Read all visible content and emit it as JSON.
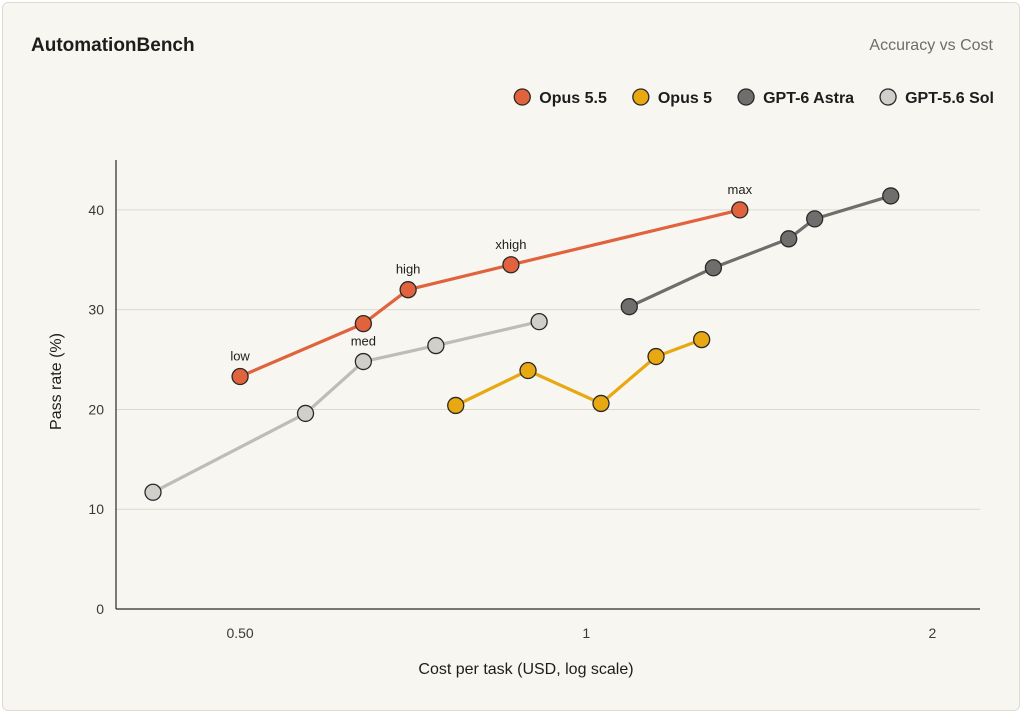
{
  "header": {
    "title": "AutomationBench",
    "subtitle": "Accuracy vs Cost"
  },
  "chart_data": {
    "type": "line",
    "title": "AutomationBench",
    "subtitle": "Accuracy vs Cost",
    "xlabel": "Cost per task (USD, log scale)",
    "ylabel": "Pass rate (%)",
    "xscale": "log",
    "xlim": [
      0.39,
      2.2
    ],
    "ylim": [
      0,
      45
    ],
    "xticks": [
      {
        "value": 0.5,
        "label": "0.50"
      },
      {
        "value": 1,
        "label": "1"
      },
      {
        "value": 2,
        "label": "2"
      }
    ],
    "yticks": [
      {
        "value": 0,
        "label": "0"
      },
      {
        "value": 10,
        "label": "10"
      },
      {
        "value": 20,
        "label": "20"
      },
      {
        "value": 30,
        "label": "30"
      },
      {
        "value": 40,
        "label": "40"
      }
    ],
    "grid": "horizontal",
    "legend_position": "top-right",
    "series": [
      {
        "name": "Opus 5.5",
        "color": "#e0633e",
        "line_color": "#e0633e",
        "points": [
          {
            "x": 0.5,
            "y": 23.3,
            "label": "low"
          },
          {
            "x": 0.64,
            "y": 28.6,
            "label": ""
          },
          {
            "x": 0.7,
            "y": 32.0,
            "label": "high"
          },
          {
            "x": 0.86,
            "y": 34.5,
            "label": "xhigh"
          },
          {
            "x": 1.36,
            "y": 40.0,
            "label": "max"
          }
        ]
      },
      {
        "name": "Opus 5",
        "color": "#e8a812",
        "line_color": "#e8a812",
        "points": [
          {
            "x": 0.77,
            "y": 20.4,
            "label": ""
          },
          {
            "x": 0.89,
            "y": 23.9,
            "label": ""
          },
          {
            "x": 1.03,
            "y": 20.6,
            "label": ""
          },
          {
            "x": 1.15,
            "y": 25.3,
            "label": ""
          },
          {
            "x": 1.26,
            "y": 27.0,
            "label": ""
          }
        ]
      },
      {
        "name": "GPT-6 Astra",
        "color": "#6e6e6c",
        "line_color": "#6e6e6c",
        "points": [
          {
            "x": 1.09,
            "y": 30.3,
            "label": ""
          },
          {
            "x": 1.29,
            "y": 34.2,
            "label": ""
          },
          {
            "x": 1.5,
            "y": 37.1,
            "label": ""
          },
          {
            "x": 1.58,
            "y": 39.1,
            "label": ""
          },
          {
            "x": 1.84,
            "y": 41.4,
            "label": ""
          }
        ]
      },
      {
        "name": "GPT-5.6 Sol",
        "color": "#d0cfcb",
        "line_color": "#bdbcb7",
        "points": [
          {
            "x": 0.42,
            "y": 11.7,
            "label": ""
          },
          {
            "x": 0.57,
            "y": 19.6,
            "label": ""
          },
          {
            "x": 0.64,
            "y": 24.8,
            "label": "med"
          },
          {
            "x": 0.74,
            "y": 26.4,
            "label": ""
          },
          {
            "x": 0.91,
            "y": 28.8,
            "label": ""
          }
        ]
      }
    ]
  }
}
